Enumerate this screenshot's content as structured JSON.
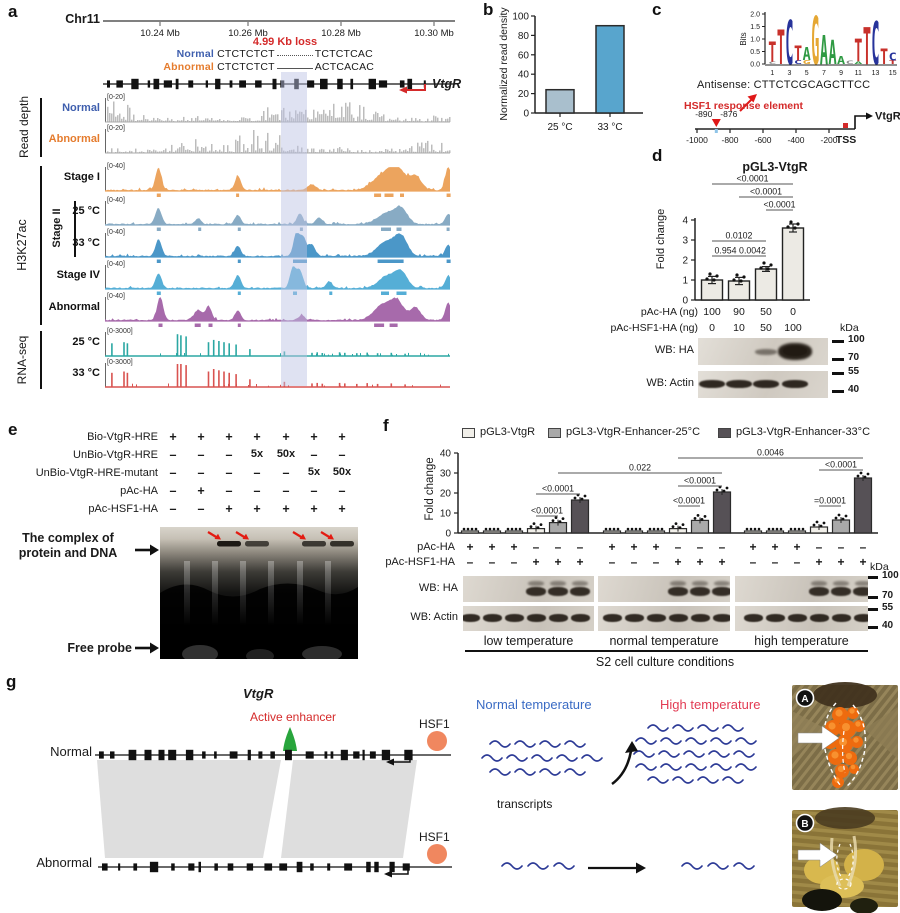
{
  "panel_a": {
    "label": "a",
    "chrom": "Chr11",
    "ruler": {
      "ticks": [
        "10.24 Mb",
        "10.26 Mb",
        "10.28 Mb",
        "10.30 Mb"
      ]
    },
    "deletion": {
      "label": "4.99 Kb loss",
      "normal_label": "Normal",
      "normal_seq_left": "CTCTCTCT",
      "normal_seq_right": "TCTCTCAC",
      "abnormal_label": "Abnormal",
      "abnormal_seq_left": "CTCTCTCT",
      "abnormal_seq_right": "ACTCACAC"
    },
    "gene": "VtgR",
    "groups": [
      {
        "name": "Read depth"
      },
      {
        "name": "H3K27ac",
        "sub": "Stage II"
      },
      {
        "name": "RNA-seq"
      }
    ],
    "tracks": [
      {
        "label": "Normal",
        "range": "[0-20]",
        "color": "#bcbcbc",
        "label_color": "#3f5fae",
        "kind": "depth"
      },
      {
        "label": "Abnormal",
        "range": "[0-20]",
        "color": "#bcbcbc",
        "label_color": "#e57c2e",
        "kind": "depth"
      },
      {
        "label": "Stage I",
        "range": "[0-40]",
        "color": "#eca45e",
        "label_color": "#111111",
        "kind": "chip"
      },
      {
        "label": "25 °C",
        "range": "[0-40]",
        "color": "#88abc4",
        "label_color": "#111111",
        "kind": "chip"
      },
      {
        "label": "33 °C",
        "range": "[0-40]",
        "color": "#4b97c8",
        "label_color": "#111111",
        "kind": "chip"
      },
      {
        "label": "Stage IV",
        "range": "[0-40]",
        "color": "#55aed6",
        "label_color": "#111111",
        "kind": "chip"
      },
      {
        "label": "Abnormal",
        "range": "[0-40]",
        "color": "#a76aab",
        "label_color": "#111111",
        "kind": "chip"
      },
      {
        "label": "25 °C",
        "range": "[0-3000]",
        "color": "#2ba7a3",
        "label_color": "#111111",
        "kind": "rna"
      },
      {
        "label": "33 °C",
        "range": "[0-3000]",
        "color": "#d95350",
        "label_color": "#111111",
        "kind": "rna"
      }
    ]
  },
  "chart_data": [
    {
      "id": "b",
      "type": "bar",
      "categories": [
        "25 °C",
        "33 °C"
      ],
      "values": [
        24,
        90
      ],
      "ylabel": "Normalized read density",
      "ylim": [
        0,
        100
      ],
      "yticks": [
        0,
        20,
        40,
        60,
        80,
        100
      ],
      "bar_colors": [
        "#a9bfcd",
        "#58a5cd"
      ],
      "grid": false,
      "legend": "none"
    },
    {
      "id": "d",
      "type": "bar",
      "title": "pGL3-VtgR",
      "categories": [
        "pAc-HA 100 / pAc-HSF1-HA 0",
        "90 / 10",
        "50 / 50",
        "0 / 100"
      ],
      "values": [
        1.0,
        0.95,
        1.55,
        3.6
      ],
      "errors": [
        0.18,
        0.18,
        0.12,
        0.2
      ],
      "ylabel": "Fold change",
      "ylim": [
        0,
        4
      ],
      "yticks": [
        0,
        1,
        2,
        3,
        4
      ],
      "bar_colors": [
        "#eceae4",
        "#eceae4",
        "#eceae4",
        "#eceae4"
      ],
      "x_rows": [
        {
          "label": "pAc-HA (ng)",
          "values": [
            "100",
            "90",
            "50",
            "0"
          ]
        },
        {
          "label": "pAc-HSF1-HA (ng)",
          "values": [
            "0",
            "10",
            "50",
            "100"
          ]
        }
      ],
      "significance": [
        {
          "from": 1,
          "to": 4,
          "label": "<0.0001"
        },
        {
          "from": 2,
          "to": 4,
          "label": "<0.0001"
        },
        {
          "from": 3,
          "to": 4,
          "label": "<0.0001"
        },
        {
          "from": 1,
          "to": 3,
          "label": "0.0102"
        },
        {
          "from": 1,
          "to": 2,
          "label": "0.954"
        },
        {
          "from": 2,
          "to": 3,
          "label": "0.0042"
        }
      ],
      "grid": false,
      "legend": "none"
    },
    {
      "id": "f",
      "type": "bar",
      "groups": [
        "low temperature",
        "normal temperature",
        "high temperature"
      ],
      "series_legend": [
        "pGL3-VtgR",
        "pGL3-VtgR-Enhancer-25°C",
        "pGL3-VtgR-Enhancer-33°C"
      ],
      "legend_colors": [
        "#f1efe9",
        "#a9a9a9",
        "#565156"
      ],
      "bar_pattern_colors": [
        "#f1efe9",
        "#f1efe9",
        "#f1efe9",
        "#f1efe9",
        "#a9a9a9",
        "#565156"
      ],
      "values": [
        [
          1,
          1,
          1,
          2.2,
          5.2,
          16.5
        ],
        [
          1,
          1,
          1,
          2.2,
          6.3,
          20.5
        ],
        [
          1,
          1,
          1,
          3.0,
          6.5,
          27.5
        ]
      ],
      "ylabel": "Fold change",
      "ylim": [
        0,
        40
      ],
      "yticks": [
        0,
        10,
        20,
        30,
        40
      ],
      "significance_within": [
        [
          {
            "from": 4,
            "to": 5,
            "label": "<0.0001"
          },
          {
            "from": 4,
            "to": 6,
            "label": "<0.0001"
          }
        ],
        [
          {
            "from": 4,
            "to": 5,
            "label": "<0.0001"
          },
          {
            "from": 4,
            "to": 6,
            "label": "<0.0001"
          }
        ],
        [
          {
            "from": 4,
            "to": 5,
            "label": "=0.0001"
          },
          {
            "from": 4,
            "to": 6,
            "label": "<0.0001"
          }
        ]
      ],
      "significance_across": [
        {
          "from_group": 1,
          "from_bar": 5,
          "to_group": 2,
          "to_bar": 6,
          "label": "0.022"
        },
        {
          "from_group": 2,
          "from_bar": 4,
          "to_group": 3,
          "to_bar": 6,
          "label": "0.0046"
        }
      ],
      "grid": false,
      "legend": "top"
    }
  ],
  "panel_b": {
    "label": "b"
  },
  "panel_c": {
    "label": "c",
    "logo": {
      "ylabel": "Bits",
      "yticks": [
        "2.0",
        "1.5",
        "1.0",
        "0.5",
        "0.0"
      ],
      "xticks": [
        "1",
        "3",
        "5",
        "7",
        "9",
        "11",
        "13",
        "15"
      ],
      "stacks": [
        [
          {
            "ch": "C",
            "h": 0.1,
            "c": "#8a8a8a"
          },
          {
            "ch": "T",
            "h": 0.8,
            "c": "#c8312b"
          }
        ],
        [
          {
            "ch": "T",
            "h": 1.35,
            "c": "#c8312b"
          }
        ],
        [
          {
            "ch": "C",
            "h": 1.75,
            "c": "#27339b"
          }
        ],
        [
          {
            "ch": "C",
            "h": 0.14,
            "c": "#27339b"
          },
          {
            "ch": "T",
            "h": 0.6,
            "c": "#c8312b"
          }
        ],
        [
          {
            "ch": "G",
            "h": 0.16,
            "c": "#e5a733"
          },
          {
            "ch": "A",
            "h": 0.5,
            "c": "#2f9a43"
          }
        ],
        [
          {
            "ch": "G",
            "h": 1.9,
            "c": "#e5a733"
          }
        ],
        [
          {
            "ch": "A",
            "h": 1.15,
            "c": "#2f9a43"
          }
        ],
        [
          {
            "ch": "A",
            "h": 0.95,
            "c": "#2f9a43"
          }
        ],
        [
          {
            "ch": "A",
            "h": 0.3,
            "c": "#2f9a43"
          }
        ],
        [
          {
            "ch": "C",
            "h": 0.12,
            "c": "#8a8a8a"
          }
        ],
        [
          {
            "ch": "A",
            "h": 0.1,
            "c": "#2f9a43"
          },
          {
            "ch": "T",
            "h": 0.9,
            "c": "#c8312b"
          }
        ],
        [
          {
            "ch": "T",
            "h": 1.45,
            "c": "#c8312b"
          }
        ],
        [
          {
            "ch": "C",
            "h": 1.7,
            "c": "#27339b"
          }
        ],
        [
          {
            "ch": "T",
            "h": 0.62,
            "c": "#c8312b"
          }
        ],
        [
          {
            "ch": "T",
            "h": 0.15,
            "c": "#c8312b"
          },
          {
            "ch": "C",
            "h": 0.3,
            "c": "#27339b"
          }
        ]
      ]
    },
    "antisense": "Antisense: CTTCTCGCAGCTTCC",
    "hre_label": "HSF1 response element",
    "pos_left": "-890",
    "pos_right": "-876",
    "scale_ticks": [
      "-1000",
      "-800",
      "-600",
      "-400",
      "-200"
    ],
    "tss": "TSS",
    "gene": "VtgR"
  },
  "panel_d": {
    "label": "d",
    "kda_label": "kDa",
    "wb": [
      {
        "label": "WB: HA",
        "markers": [
          "100",
          "70"
        ]
      },
      {
        "label": "WB: Actin",
        "markers": [
          "55",
          "40"
        ]
      }
    ]
  },
  "panel_e": {
    "label": "e",
    "rows": [
      {
        "label": "Bio-VtgR-HRE",
        "values": [
          "+",
          "+",
          "+",
          "+",
          "+",
          "+",
          "+"
        ]
      },
      {
        "label": "UnBio-VtgR-HRE",
        "values": [
          "–",
          "–",
          "–",
          "5x",
          "50x",
          "–",
          "–"
        ]
      },
      {
        "label": "UnBio-VtgR-HRE-mutant",
        "values": [
          "–",
          "–",
          "–",
          "–",
          "–",
          "5x",
          "50x"
        ]
      },
      {
        "label": "pAc-HA",
        "values": [
          "–",
          "+",
          "–",
          "–",
          "–",
          "–",
          "–"
        ]
      },
      {
        "label": "pAc-HSF1-HA",
        "values": [
          "–",
          "–",
          "+",
          "+",
          "+",
          "+",
          "+"
        ]
      }
    ],
    "complex_label": "The complex of protein and DNA",
    "free_probe_label": "Free probe"
  },
  "panel_f": {
    "label": "f",
    "rows": [
      {
        "label": "pAc-HA",
        "values": [
          "+",
          "+",
          "+",
          "–",
          "–",
          "–",
          "+",
          "+",
          "+",
          "–",
          "–",
          "–",
          "+",
          "+",
          "+",
          "–",
          "–",
          "–"
        ]
      },
      {
        "label": "pAc-HSF1-HA",
        "values": [
          "–",
          "–",
          "–",
          "+",
          "+",
          "+",
          "–",
          "–",
          "–",
          "+",
          "+",
          "+",
          "–",
          "–",
          "–",
          "+",
          "+",
          "+"
        ]
      }
    ],
    "kda_label": "kDa",
    "kda_markers": [
      "100",
      "70",
      "55",
      "40"
    ],
    "wb_labels": [
      "WB: HA",
      "WB: Actin"
    ],
    "group_labels": [
      "low temperature",
      "normal temperature",
      "high temperature"
    ],
    "axis_label": "S2 cell culture conditions"
  },
  "panel_g": {
    "label": "g",
    "gene": "VtgR",
    "enhancer_label": "Active enhancer",
    "normal_label": "Normal",
    "abnormal_label": "Abnormal",
    "hsf1_label": "HSF1",
    "normal_temp": "Normal temperature",
    "high_temp": "High temperature",
    "transcripts_label": "transcripts",
    "photo_labels": [
      "A",
      "B"
    ]
  }
}
